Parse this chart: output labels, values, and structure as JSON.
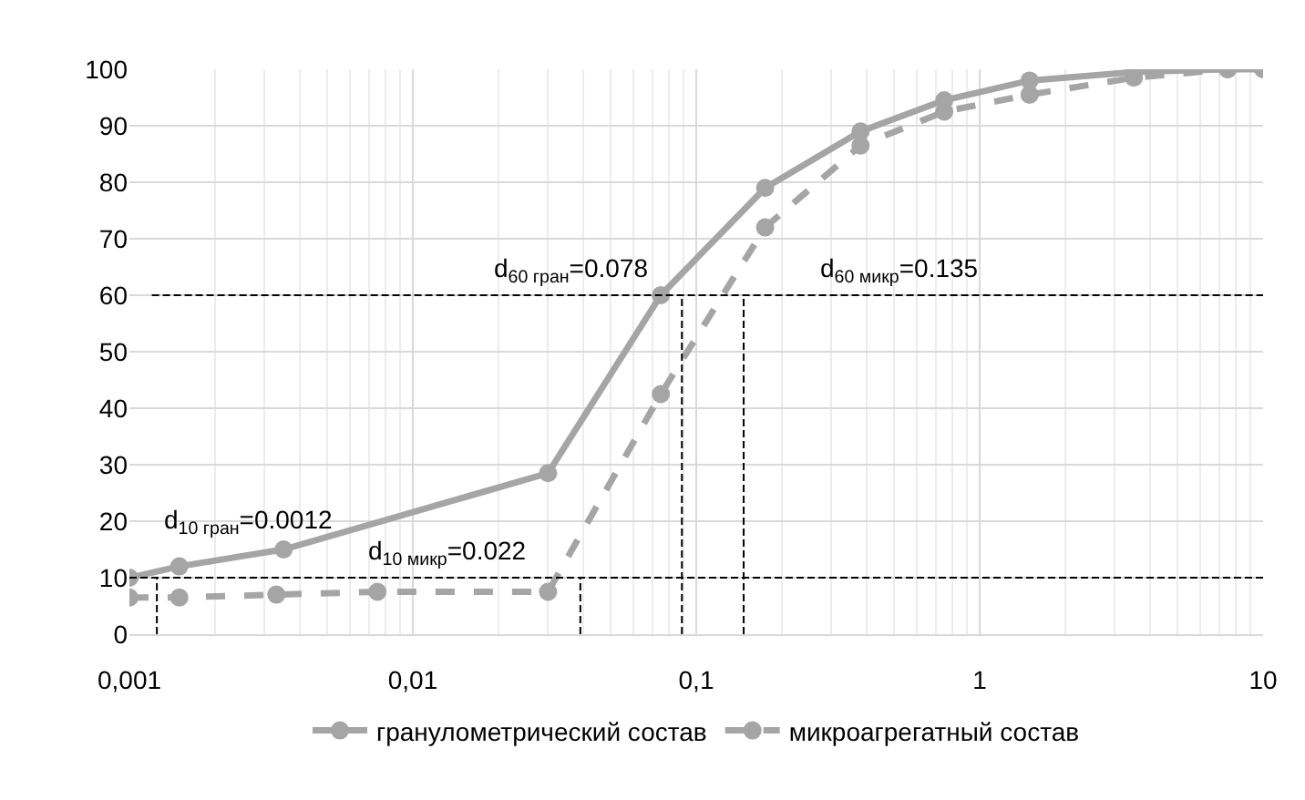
{
  "chart_data": {
    "type": "line",
    "log": "x",
    "grid": true,
    "legend": "bottom",
    "marker": "circle",
    "xlim": [
      0.001,
      10
    ],
    "ylim": [
      0,
      100
    ],
    "xticks": [
      {
        "value": 0.001,
        "label": "0,001"
      },
      {
        "value": 0.01,
        "label": "0,01"
      },
      {
        "value": 0.1,
        "label": "0,1"
      },
      {
        "value": 1,
        "label": "1"
      },
      {
        "value": 10,
        "label": "10"
      }
    ],
    "yticks": [
      0,
      10,
      20,
      30,
      40,
      50,
      60,
      70,
      80,
      90,
      100
    ],
    "series": [
      {
        "name": "гранулометрический состав",
        "color": "#a5a5a5",
        "line_style": "solid",
        "x": [
          0.001,
          0.0015,
          0.0035,
          0.03,
          0.075,
          0.175,
          0.38,
          0.75,
          1.5,
          3.5,
          7.5,
          10
        ],
        "values": [
          10,
          12,
          15,
          28.5,
          60,
          79,
          89,
          94.5,
          98,
          99.5,
          100,
          100
        ]
      },
      {
        "name": "микроагрегатный состав",
        "color": "#a5a5a5",
        "line_style": "dashed",
        "x": [
          0.001,
          0.0015,
          0.0033,
          0.0075,
          0.03,
          0.075,
          0.175,
          0.38,
          0.75,
          1.5,
          3.5,
          7.5
        ],
        "values": [
          6.5,
          6.5,
          7,
          7.5,
          7.5,
          42.5,
          72,
          86.5,
          92.5,
          95.5,
          98.5,
          100
        ]
      },
      {
        "color": "#000000",
        "line_style": "dashed",
        "marker": "none",
        "x": [
          0.0012,
          10
        ],
        "values": [
          60,
          60
        ]
      },
      {
        "color": "#000000",
        "line_style": "dashed",
        "marker": "none",
        "x": [
          0.001,
          10
        ],
        "values": [
          10,
          10
        ]
      },
      {
        "color": "#000000",
        "line_style": "dashed",
        "marker": "none",
        "x": [
          0.00125,
          0.00125
        ],
        "values": [
          0,
          10
        ]
      },
      {
        "color": "#000000",
        "line_style": "dashed",
        "marker": "none",
        "x": [
          0.039,
          0.039
        ],
        "values": [
          0,
          10
        ]
      },
      {
        "color": "#000000",
        "line_style": "dashed",
        "marker": "none",
        "x": [
          0.089,
          0.089
        ],
        "values": [
          0,
          60
        ]
      },
      {
        "color": "#000000",
        "line_style": "dashed",
        "marker": "none",
        "x": [
          0.147,
          0.147
        ],
        "values": [
          0,
          60
        ]
      }
    ],
    "annotations": [
      "d$_{10 гран}$=0.0012",
      "d$_{10 микр}$=0.022",
      "d$_{60 гран}$=0.078",
      "d$_{60 микр}$=0.135"
    ]
  }
}
